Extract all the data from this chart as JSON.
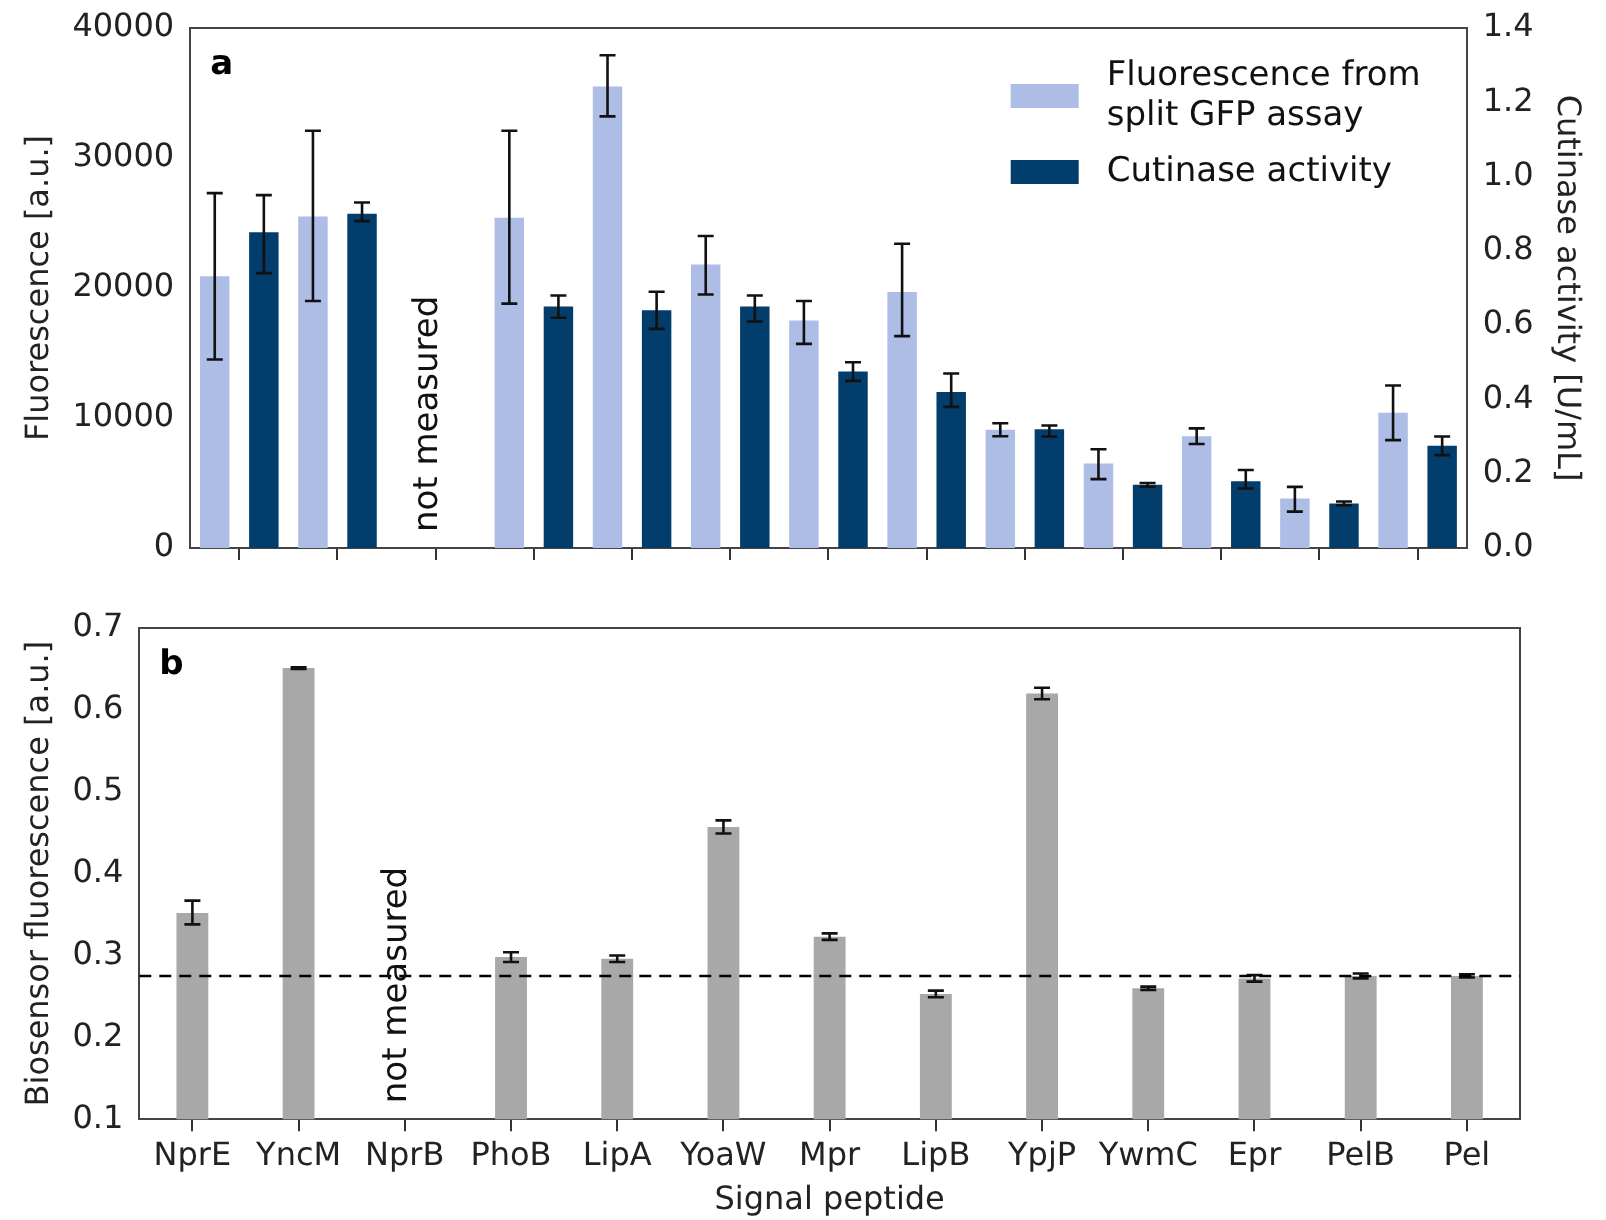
{
  "chart_data": [
    {
      "type": "bar",
      "title": "a",
      "ylabel": "Fluorescence [a.u.]",
      "y2label": "Cutinase activity [U/mL]",
      "categories": [
        null,
        null,
        null,
        null,
        null,
        null,
        null,
        null,
        null,
        null,
        null,
        null,
        null
      ],
      "series": [
        {
          "name": "Fluorescence from split GFP assay",
          "color": "#aebde6",
          "values": [
            20900,
            25500,
            null,
            25400,
            35500,
            21800,
            17500,
            19700,
            9100,
            6500,
            8600,
            3800,
            10400
          ],
          "errors": [
            [
              14500,
              27300
            ],
            [
              19000,
              32100
            ],
            null,
            [
              18800,
              32100
            ],
            [
              33200,
              37900
            ],
            [
              19500,
              24000
            ],
            [
              15700,
              19000
            ],
            [
              16300,
              23400
            ],
            [
              8600,
              9600
            ],
            [
              5300,
              7600
            ],
            [
              8000,
              9200
            ],
            [
              2800,
              4700
            ],
            [
              8300,
              12500
            ]
          ]
        },
        {
          "name": "Cutinase activity",
          "color": "#033d6b",
          "axis": "y2",
          "values": [
            0.85,
            0.9,
            null,
            0.65,
            0.64,
            0.65,
            0.475,
            0.42,
            0.32,
            0.17,
            0.18,
            0.12,
            0.275
          ],
          "errors": [
            [
              0.74,
              0.95
            ],
            [
              0.88,
              0.93
            ],
            null,
            [
              0.62,
              0.68
            ],
            [
              0.59,
              0.69
            ],
            [
              0.61,
              0.68
            ],
            [
              0.45,
              0.5
            ],
            [
              0.38,
              0.47
            ],
            [
              0.3,
              0.33
            ],
            [
              0.165,
              0.175
            ],
            [
              0.16,
              0.21
            ],
            [
              0.115,
              0.125
            ],
            [
              0.25,
              0.3
            ]
          ]
        }
      ],
      "ylim": [
        0,
        40000
      ],
      "yticks": [
        0,
        10000,
        20000,
        30000,
        40000
      ],
      "y2lim": [
        0,
        1.4
      ],
      "y2ticks": [
        {
          "value": 0,
          "label": "0.0"
        },
        0.2,
        0.4,
        0.6,
        0.8,
        {
          "value": 1,
          "label": "1.0"
        },
        1.2,
        1.4
      ],
      "tick_labels": "y",
      "legend": "top right",
      "grid": false,
      "annotations": [
        "not measured"
      ]
    },
    {
      "type": "bar",
      "title": "b",
      "xlabel": "Signal peptide",
      "ylabel": "Biosensor fluorescence [a.u.]",
      "categories": [
        "NprE",
        "YncM",
        "NprB",
        "PhoB",
        "LipA",
        "YoaW",
        "Mpr",
        "LipB",
        "YpjP",
        "YwmC",
        "Epr",
        "PelB",
        "Pel"
      ],
      "series": [
        {
          "color": "#a8a8a8",
          "values": [
            0.352,
            0.651,
            null,
            0.298,
            0.296,
            0.457,
            0.323,
            0.253,
            0.62,
            0.26,
            0.272,
            0.275,
            0.275
          ],
          "errors": [
            [
              0.338,
              0.367
            ],
            [
              0.65,
              0.652
            ],
            null,
            [
              0.292,
              0.304
            ],
            [
              0.292,
              0.3
            ],
            [
              0.449,
              0.465
            ],
            [
              0.319,
              0.327
            ],
            [
              0.249,
              0.257
            ],
            [
              0.613,
              0.627
            ],
            [
              0.258,
              0.262
            ],
            [
              0.268,
              0.276
            ],
            [
              0.272,
              0.278
            ],
            [
              0.273,
              0.277
            ]
          ]
        }
      ],
      "ylim": [
        0.1,
        0.7
      ],
      "yticks": [
        0.1,
        0.2,
        0.3,
        0.4,
        0.5,
        0.6,
        0.7
      ],
      "ref_lines": [
        {
          "axis": "y",
          "value": 0.275,
          "color": "#000000",
          "line_style": "dashed"
        }
      ],
      "grid": false,
      "annotations": [
        "not measured"
      ]
    }
  ]
}
